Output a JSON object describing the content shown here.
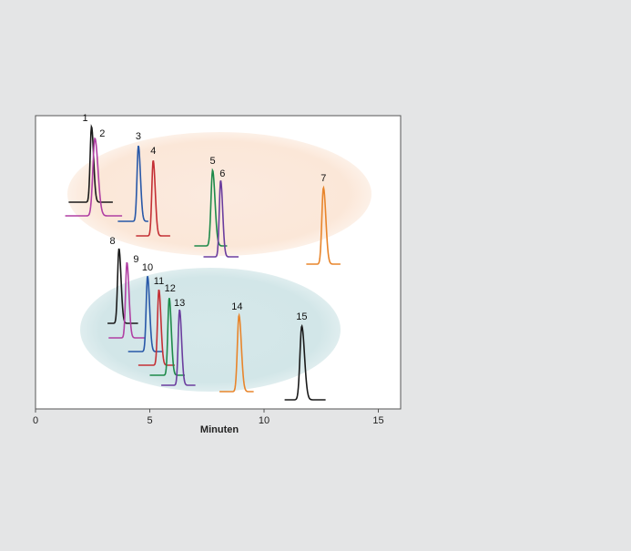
{
  "chart_data": {
    "type": "line",
    "title": "",
    "xlabel": "Minuten",
    "ylabel": "",
    "xlim": [
      0,
      16
    ],
    "x_ticks": [
      "0",
      "5",
      "10",
      "15"
    ],
    "x_tick_values": [
      0,
      5,
      10,
      15
    ],
    "grid": false,
    "legend": "none",
    "groups": [
      {
        "name": "",
        "color": "#fbeadf",
        "x_range": [
          2.3,
          13.6
        ]
      },
      {
        "name": "",
        "color": "#d6e8ea",
        "x_range": [
          1.9,
          13.4
        ]
      }
    ],
    "series": [
      {
        "label": "1",
        "color": "#1a1a1a",
        "peak_time": 2.45,
        "width": 0.06,
        "baseline_span": [
          1.45,
          3.4
        ]
      },
      {
        "label": "2",
        "color": "#b03fa3",
        "peak_time": 2.6,
        "width": 0.09,
        "baseline_span": [
          1.3,
          3.8
        ]
      },
      {
        "label": "3",
        "color": "#2858a8",
        "peak_time": 4.5,
        "width": 0.06,
        "baseline_span": [
          3.6,
          4.95
        ]
      },
      {
        "label": "4",
        "color": "#c43035",
        "peak_time": 5.15,
        "width": 0.06,
        "baseline_span": [
          4.4,
          5.9
        ]
      },
      {
        "label": "5",
        "color": "#1e8a4a",
        "peak_time": 7.75,
        "width": 0.07,
        "baseline_span": [
          6.95,
          8.4
        ]
      },
      {
        "label": "6",
        "color": "#6b3d9e",
        "peak_time": 8.1,
        "width": 0.06,
        "baseline_span": [
          7.35,
          8.9
        ]
      },
      {
        "label": "7",
        "color": "#e8852b",
        "peak_time": 12.6,
        "width": 0.07,
        "baseline_span": [
          11.85,
          13.35
        ]
      },
      {
        "label": "8",
        "color": "#1a1a1a",
        "peak_time": 3.65,
        "width": 0.06,
        "baseline_span": [
          3.15,
          4.5
        ]
      },
      {
        "label": "9",
        "color": "#b03fa3",
        "peak_time": 4.0,
        "width": 0.06,
        "baseline_span": [
          3.2,
          4.8
        ]
      },
      {
        "label": "10",
        "color": "#2858a8",
        "peak_time": 4.9,
        "width": 0.06,
        "baseline_span": [
          4.05,
          5.6
        ]
      },
      {
        "label": "11",
        "color": "#c43035",
        "peak_time": 5.4,
        "width": 0.06,
        "baseline_span": [
          4.5,
          6.1
        ]
      },
      {
        "label": "12",
        "color": "#1e8a4a",
        "peak_time": 5.85,
        "width": 0.06,
        "baseline_span": [
          5.0,
          6.55
        ]
      },
      {
        "label": "13",
        "color": "#6b3d9e",
        "peak_time": 6.3,
        "width": 0.06,
        "baseline_span": [
          5.5,
          7.0
        ]
      },
      {
        "label": "14",
        "color": "#e8852b",
        "peak_time": 8.9,
        "width": 0.07,
        "baseline_span": [
          8.05,
          9.55
        ]
      },
      {
        "label": "15",
        "color": "#1a1a1a",
        "peak_time": 11.65,
        "width": 0.08,
        "baseline_span": [
          10.9,
          12.7
        ]
      }
    ]
  }
}
